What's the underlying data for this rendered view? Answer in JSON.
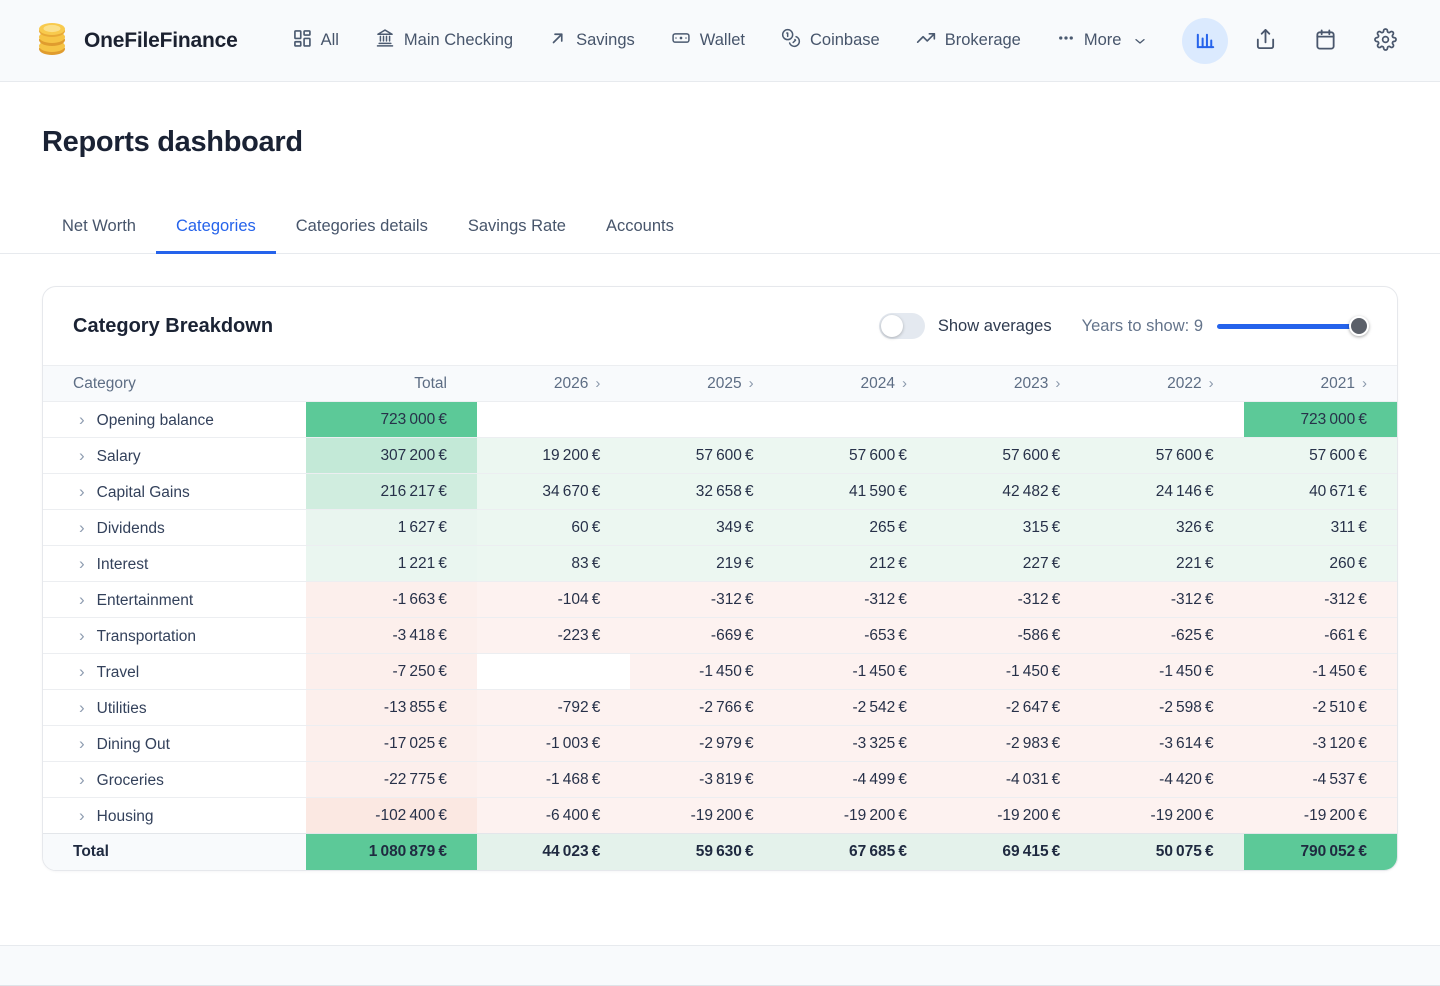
{
  "brand": {
    "name": "OneFileFinance"
  },
  "nav": {
    "items": [
      {
        "label": "All",
        "icon": "dashboard-grid-icon"
      },
      {
        "label": "Main Checking",
        "icon": "bank-icon"
      },
      {
        "label": "Savings",
        "icon": "arrow-up-right-icon"
      },
      {
        "label": "Wallet",
        "icon": "banknote-icon"
      },
      {
        "label": "Coinbase",
        "icon": "coins-icon"
      },
      {
        "label": "Brokerage",
        "icon": "trending-up-icon"
      },
      {
        "label": "More",
        "icon": "ellipsis-icon"
      }
    ]
  },
  "page": {
    "title": "Reports dashboard"
  },
  "tabs": [
    {
      "label": "Net Worth",
      "active": false
    },
    {
      "label": "Categories",
      "active": true
    },
    {
      "label": "Categories details",
      "active": false
    },
    {
      "label": "Savings Rate",
      "active": false
    },
    {
      "label": "Accounts",
      "active": false
    }
  ],
  "card": {
    "title": "Category Breakdown",
    "show_averages_label": "Show averages",
    "show_averages_on": false,
    "years_label": "Years to show:",
    "years_value": "9"
  },
  "table": {
    "columns": [
      "Category",
      "Total",
      "2026",
      "2025",
      "2024",
      "2023",
      "2022",
      "2021"
    ],
    "rows": [
      {
        "label": "Opening balance",
        "kind": "opening",
        "total": "723 000 €",
        "total_bg": "#5cc998",
        "cells": [
          "",
          "",
          "",
          "",
          "",
          {
            "t": "723 000 €",
            "bg": "#5cc998"
          }
        ]
      },
      {
        "label": "Salary",
        "kind": "income",
        "total": "307 200 €",
        "total_bg": "#c3e9d7",
        "cells": [
          "19 200 €",
          "57 600 €",
          "57 600 €",
          "57 600 €",
          "57 600 €",
          "57 600 €"
        ]
      },
      {
        "label": "Capital Gains",
        "kind": "income",
        "total": "216 217 €",
        "total_bg": "#d0eddf",
        "cells": [
          "34 670 €",
          "32 658 €",
          "41 590 €",
          "42 482 €",
          "24 146 €",
          "40 671 €"
        ]
      },
      {
        "label": "Dividends",
        "kind": "income",
        "total": "1 627 €",
        "total_bg": "#e9f5ef",
        "cells": [
          "60 €",
          "349 €",
          "265 €",
          "315 €",
          "326 €",
          "311 €"
        ]
      },
      {
        "label": "Interest",
        "kind": "income",
        "total": "1 221 €",
        "total_bg": "#eaf6f0",
        "cells": [
          "83 €",
          "219 €",
          "212 €",
          "227 €",
          "221 €",
          "260 €"
        ]
      },
      {
        "label": "Entertainment",
        "kind": "expense",
        "total": "-1 663 €",
        "total_bg": "#fcefec",
        "cells": [
          "-104 €",
          "-312 €",
          "-312 €",
          "-312 €",
          "-312 €",
          "-312 €"
        ]
      },
      {
        "label": "Transportation",
        "kind": "expense",
        "total": "-3 418 €",
        "total_bg": "#fcefec",
        "cells": [
          "-223 €",
          "-669 €",
          "-653 €",
          "-586 €",
          "-625 €",
          "-661 €"
        ]
      },
      {
        "label": "Travel",
        "kind": "expense",
        "total": "-7 250 €",
        "total_bg": "#fcefec",
        "cells": [
          {
            "t": "",
            "bg": "#ffffff"
          },
          "-1 450 €",
          "-1 450 €",
          "-1 450 €",
          "-1 450 €",
          "-1 450 €"
        ]
      },
      {
        "label": "Utilities",
        "kind": "expense",
        "total": "-13 855 €",
        "total_bg": "#fcefec",
        "cells": [
          "-792 €",
          "-2 766 €",
          "-2 542 €",
          "-2 647 €",
          "-2 598 €",
          "-2 510 €"
        ]
      },
      {
        "label": "Dining Out",
        "kind": "expense",
        "total": "-17 025 €",
        "total_bg": "#fcefec",
        "cells": [
          "-1 003 €",
          "-2 979 €",
          "-3 325 €",
          "-2 983 €",
          "-3 614 €",
          "-3 120 €"
        ]
      },
      {
        "label": "Groceries",
        "kind": "expense",
        "total": "-22 775 €",
        "total_bg": "#fcefec",
        "cells": [
          "-1 468 €",
          "-3 819 €",
          "-4 499 €",
          "-4 031 €",
          "-4 420 €",
          "-4 537 €"
        ]
      },
      {
        "label": "Housing",
        "kind": "expense",
        "total": "-102 400 €",
        "total_bg": "#fbe8e2",
        "cells": [
          "-6 400 €",
          "-19 200 €",
          "-19 200 €",
          "-19 200 €",
          "-19 200 €",
          "-19 200 €"
        ]
      },
      {
        "label": "Total",
        "kind": "total",
        "total": "1 080 879 €",
        "total_bg": "#5cc998",
        "cells": [
          "44 023 €",
          "59 630 €",
          "67 685 €",
          "69 415 €",
          "50 075 €",
          {
            "t": "790 052 €",
            "bg": "#5cc998"
          }
        ]
      }
    ]
  },
  "colors": {
    "accent_blue": "#2563eb",
    "strong_green": "#5cc998",
    "income_tint": "#ecf7f1",
    "expense_tint": "#fdf2f0",
    "total_row_tint": "#e4f2eb",
    "topbar_bg": "#f8fafc",
    "active_button_bg": "#dbeafe",
    "slider_thumb": "#5b6069"
  }
}
